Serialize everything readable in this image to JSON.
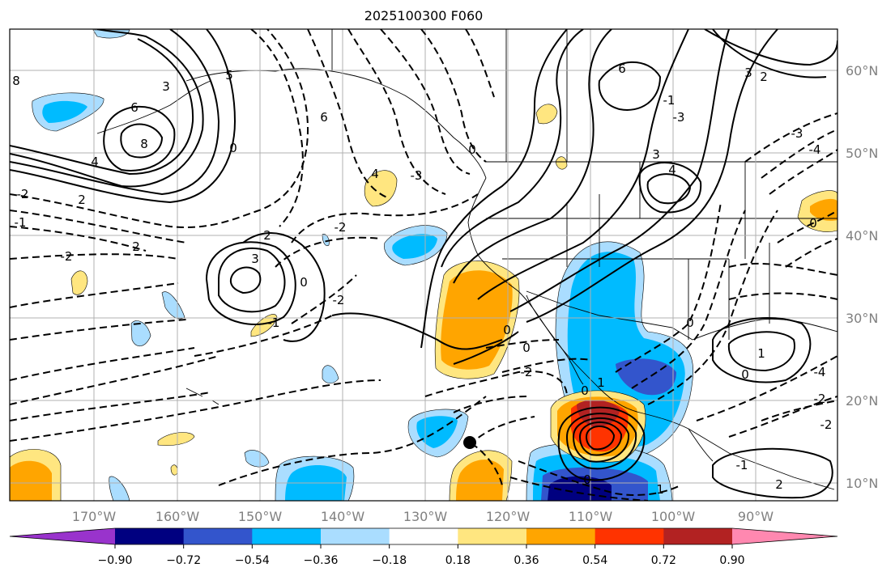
{
  "title": "2025100300 F060",
  "lon_ticks": [
    "170°W",
    "160°W",
    "150°W",
    "140°W",
    "130°W",
    "120°W",
    "110°W",
    "100°W",
    "90°W"
  ],
  "lat_ticks": [
    "60°N",
    "50°N",
    "40°N",
    "30°N",
    "20°N",
    "10°N"
  ],
  "colorbar": {
    "colors": [
      "#9933cc",
      "#000080",
      "#3355cc",
      "#00bbff",
      "#aaddff",
      "#ffffff",
      "#ffe680",
      "#ffa500",
      "#ff3300",
      "#b22222",
      "#ff88b0"
    ],
    "tick_labels": [
      "−0.90",
      "−0.72",
      "−0.54",
      "−0.36",
      "−0.18",
      "0.18",
      "0.36",
      "0.54",
      "0.72",
      "0.90"
    ]
  },
  "contour_labels": [
    "8",
    "3",
    "6",
    "5",
    "8",
    "6",
    "4",
    "0",
    "-2",
    "2",
    "-1",
    "-2",
    "2",
    "3",
    "2",
    "4",
    "-2",
    "-3",
    "0",
    "-2",
    "-1",
    "0",
    "0",
    "-2",
    "0",
    "6",
    "3",
    "4",
    "3",
    "2",
    "-3",
    "-4",
    "1",
    "0",
    "0",
    "1",
    "-2",
    "2",
    "0",
    "0",
    "1",
    "-2",
    "-1",
    "0",
    "-3",
    "-1",
    "-4"
  ],
  "markers": [
    {
      "name": "storm-center-dot",
      "color": "#000000"
    }
  ]
}
